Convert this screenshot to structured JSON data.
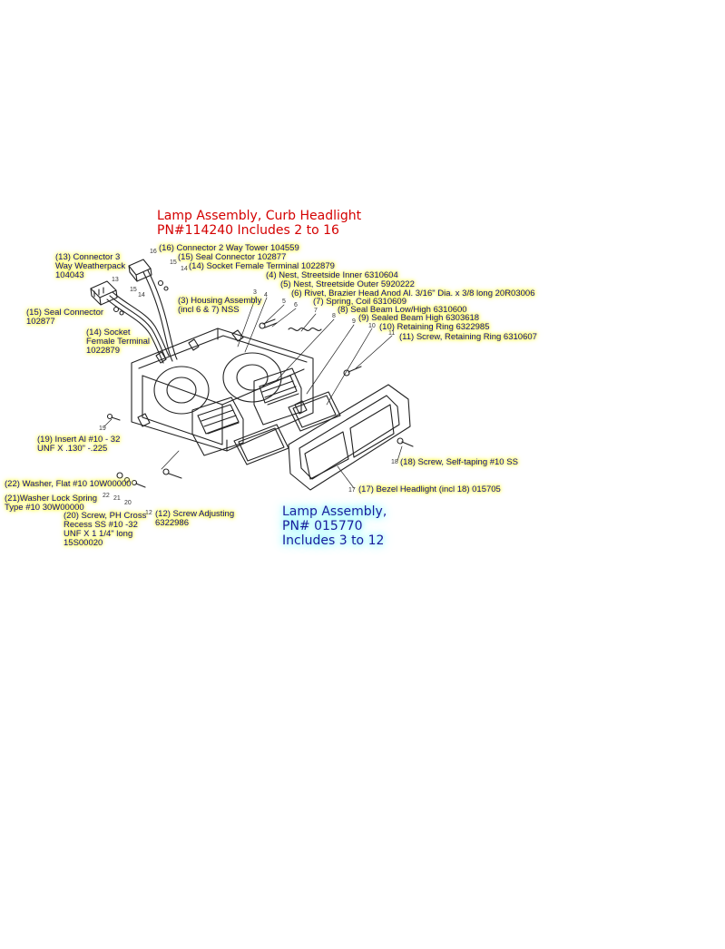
{
  "titles": {
    "curb": {
      "line1": "Lamp Assembly, Curb Headlight",
      "line2": "PN#114240     Includes 2 to 16",
      "color": "#d40000"
    },
    "lamp": {
      "line1": "Lamp Assembly,",
      "line2": "PN# 015770",
      "line3": "Includes 3 to 12",
      "glow": "#7ff3ff"
    }
  },
  "labels": {
    "p16": "(16) Connector 2 Way Tower 104559",
    "p15a": "(15) Seal Connector 102877",
    "p14a": "(14) Socket Female Terminal 1022879",
    "p4": "(4) Nest, Streetside Inner 6310604",
    "p5": "(5) Nest, Streetside Outer 5920222",
    "p6": "(6) Rivet, Brazier Head Anod Al. 3/16\" Dia. x 3/8 long 20R03006",
    "p7": "(7) Spring, Coil 6310609",
    "p8": "(8) Seal Beam Low/High 6310600",
    "p9": "(9) Sealed Beam High 6303618",
    "p10": "(10) Retaining Ring 6322985",
    "p11": "(11) Screw, Retaining Ring 6310607",
    "p13": [
      "(13) Connector 3",
      "Way Weatherpack",
      "104043"
    ],
    "p15b": [
      "(15) Seal Connector",
      "102877"
    ],
    "p3": [
      "(3) Housing Assembly",
      "(incl 6 & 7)  NSS"
    ],
    "p14b": [
      "(14) Socket",
      "Female Terminal",
      "1022879"
    ],
    "p19": [
      "(19) Insert Al #10 - 32",
      "UNF X .130\" -.225"
    ],
    "p22": "(22) Washer, Flat #10 10W00000",
    "p21": [
      "(21)Washer Lock Spring",
      "Type #10 30W00000"
    ],
    "p20": [
      "(20) Screw, PH Cross",
      "Recess SS #10 -32",
      "UNF X 1 1/4\" long",
      "15S00020"
    ],
    "p12": [
      "(12) Screw Adjusting",
      "6322986"
    ],
    "p18": "(18) Screw, Self-taping #10 SS",
    "p17": "(17) Bezel Headlight (incl 18) 015705"
  },
  "callout_numbers": [
    "16",
    "15",
    "14",
    "13",
    "14",
    "15",
    "3",
    "4",
    "5",
    "6",
    "7",
    "8",
    "9",
    "10",
    "11",
    "19",
    "22",
    "21",
    "20",
    "12",
    "18",
    "17"
  ],
  "colors": {
    "label_text": "#0a0a8a",
    "highlight": "#fff200",
    "line": "#222222"
  }
}
